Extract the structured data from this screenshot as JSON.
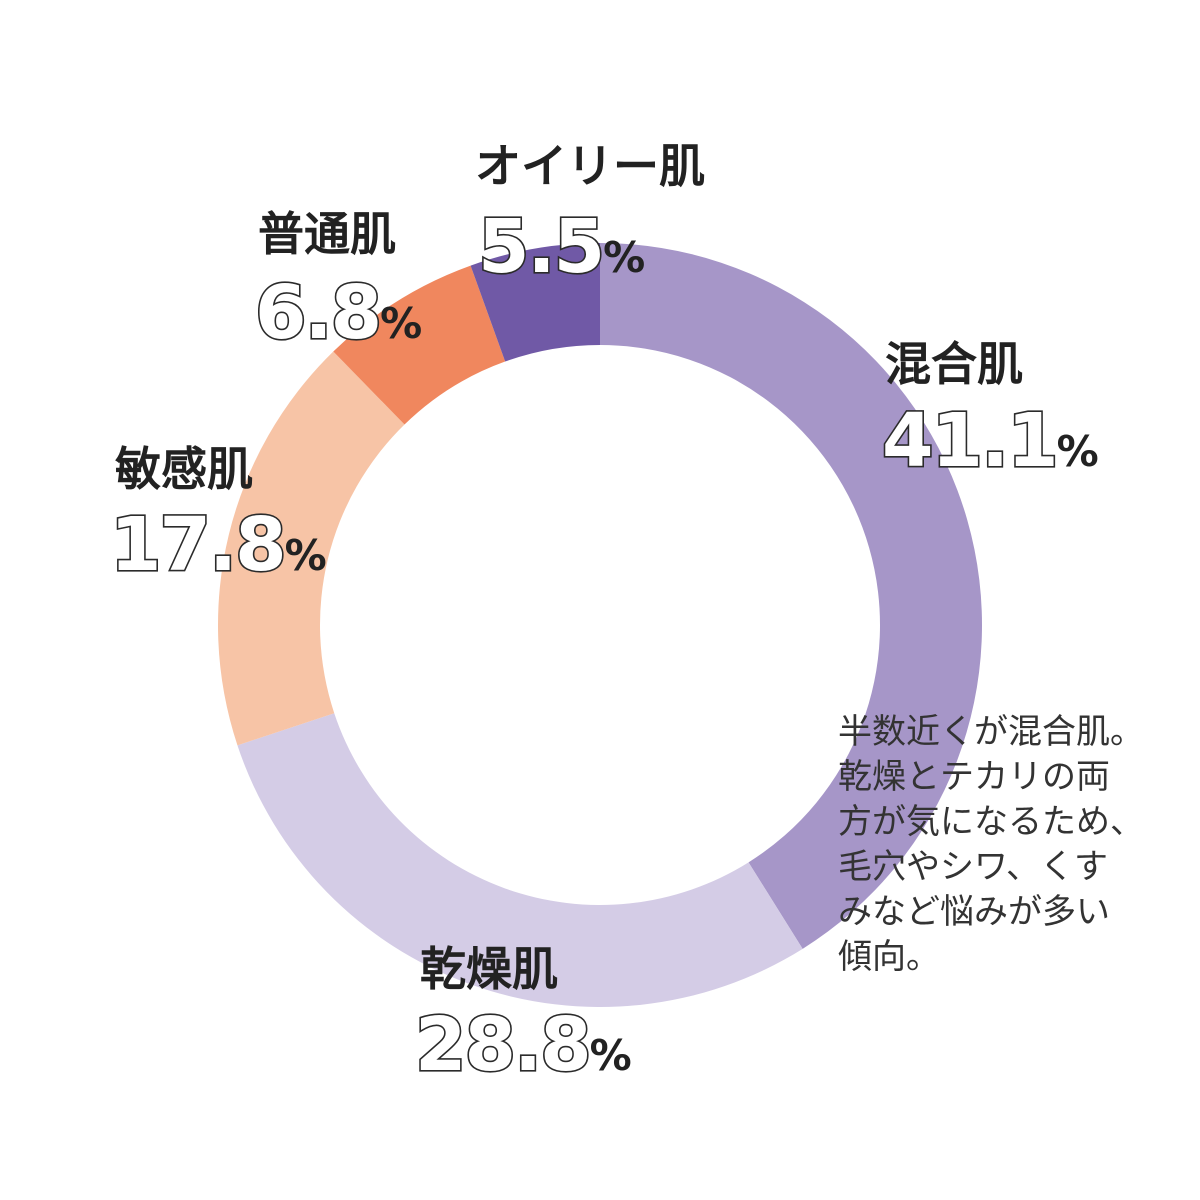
{
  "chart_data": {
    "type": "pie",
    "variant": "donut",
    "title": "",
    "unit": "%",
    "start_angle_deg": 0,
    "direction": "clockwise",
    "segments": [
      {
        "name": "混合肌",
        "value": 41.1,
        "label": "41.1",
        "color": "#a696c8"
      },
      {
        "name": "乾燥肌",
        "value": 28.8,
        "label": "28.8",
        "color": "#d4cce6"
      },
      {
        "name": "敏感肌",
        "value": 17.8,
        "label": "17.8",
        "color": "#f7c4a6"
      },
      {
        "name": "普通肌",
        "value": 6.8,
        "label": "6.8",
        "color": "#f0875e"
      },
      {
        "name": "オイリー肌",
        "value": 5.5,
        "label": "5.5",
        "color": "#7059a6"
      }
    ]
  },
  "note": {
    "lines": [
      "半数近くが混合肌。",
      "乾燥とテカリの両",
      "方が気になるため、",
      "毛穴やシワ、くす",
      "みなど悩みが多い",
      "傾向。"
    ]
  }
}
